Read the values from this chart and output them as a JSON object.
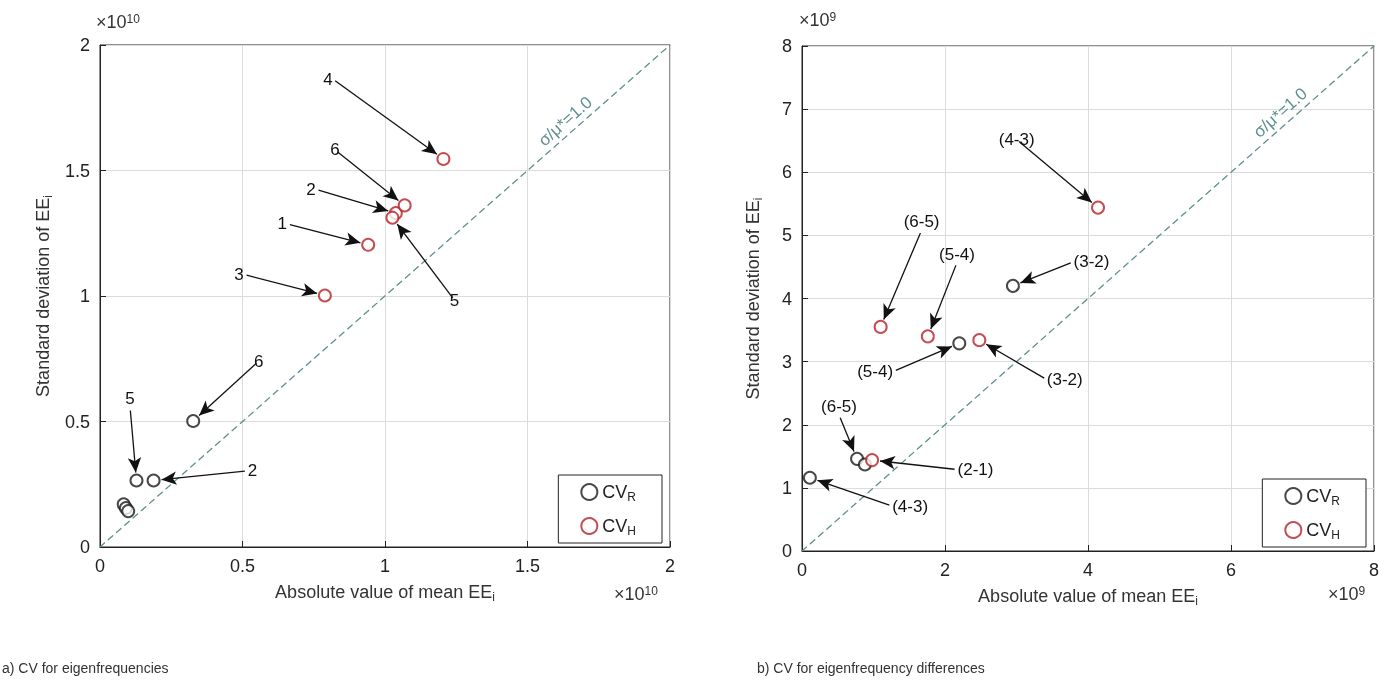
{
  "chart_data": [
    {
      "type": "scatter",
      "xlabel": "Absolute value of mean EE$_{i}$",
      "ylabel": "Standard deviation of EE$_{i}$",
      "xlim": [
        0,
        2
      ],
      "xticks": [
        0,
        0.5,
        1,
        1.5,
        2
      ],
      "ylim": [
        0,
        2
      ],
      "yticks": [
        0,
        0.5,
        1,
        1.5,
        2
      ],
      "grid": true,
      "legend": "bottom right",
      "marker": "circle",
      "series": [
        {
          "name": "CV$_{R}$",
          "color": "#1a1a1a",
          "x": [
            0.083,
            0.091,
            0.099,
            0.128,
            0.188,
            0.327
          ],
          "values": [
            0.17,
            0.155,
            0.143,
            0.265,
            0.265,
            0.502
          ]
        },
        {
          "name": "CV$_{H}$",
          "color": "#b52025",
          "x": [
            0.941,
            1.038,
            0.789,
            1.205,
            1.026,
            1.069
          ],
          "values": [
            1.204,
            1.33,
            1.002,
            1.546,
            1.312,
            1.361
          ]
        },
        {
          "name": "σ/μ*=1.0",
          "type": "line",
          "color": "#5f8f8f",
          "line_style": "dashed",
          "marker": "none",
          "x": [
            0,
            2
          ],
          "values": [
            0,
            2
          ]
        }
      ],
      "annotations": [
        "×10$^{10}$",
        "×10$^{10}$",
        "a) CV for eigenfrequencies",
        {
          "text": "4",
          "x": 1.205,
          "y": 1.546
        },
        {
          "text": "6",
          "x": 1.069,
          "y": 1.361
        },
        {
          "text": "2",
          "x": 1.038,
          "y": 1.33
        },
        {
          "text": "1",
          "x": 0.941,
          "y": 1.204
        },
        {
          "text": "3",
          "x": 0.789,
          "y": 1.002
        },
        {
          "text": "5",
          "x": 1.026,
          "y": 1.312
        },
        {
          "text": "6",
          "x": 0.327,
          "y": 0.502
        },
        {
          "text": "5",
          "x": 0.128,
          "y": 0.265
        },
        {
          "text": "2",
          "x": 0.188,
          "y": 0.265
        }
      ]
    },
    {
      "type": "scatter",
      "xlabel": "Absolute value of mean EE$_{i}$",
      "ylabel": "Standard deviation of EE$_{i}$",
      "xlim": [
        0,
        8
      ],
      "xticks": [
        0,
        2,
        4,
        6,
        8
      ],
      "ylim": [
        0,
        8
      ],
      "yticks": [
        0,
        1,
        2,
        3,
        4,
        5,
        6,
        7,
        8
      ],
      "grid": true,
      "legend": "bottom right",
      "marker": "circle",
      "series": [
        {
          "name": "CV$_{R}$",
          "color": "#1a1a1a",
          "x": [
            0.11,
            0.77,
            0.88,
            2.2,
            2.95
          ],
          "values": [
            1.16,
            1.46,
            1.37,
            3.29,
            4.2
          ]
        },
        {
          "name": "CV$_{H}$",
          "color": "#b52025",
          "x": [
            0.98,
            2.48,
            1.76,
            4.14,
            1.1
          ],
          "values": [
            1.44,
            3.34,
            3.4,
            5.44,
            3.55
          ]
        },
        {
          "name": "σ/μ*=1.0",
          "type": "line",
          "color": "#5f8f8f",
          "line_style": "dashed",
          "marker": "none",
          "x": [
            0,
            8
          ],
          "values": [
            0,
            8
          ]
        }
      ],
      "annotations": [
        "×10$^{9}$",
        "×10$^{9}$",
        "b) CV for eigenfrequency differences",
        {
          "text": "(4-3)",
          "x": 4.14,
          "y": 5.44
        },
        {
          "text": "(3-2)",
          "x": 2.95,
          "y": 4.2
        },
        {
          "text": "(6-5)",
          "x": 1.1,
          "y": 3.55
        },
        {
          "text": "(5-4)",
          "x": 1.76,
          "y": 3.4
        },
        {
          "text": "(5-4)",
          "x": 2.2,
          "y": 3.29
        },
        {
          "text": "(3-2)",
          "x": 2.48,
          "y": 3.34
        },
        {
          "text": "(6-5)",
          "x": 0.77,
          "y": 1.46
        },
        {
          "text": "(2-1)",
          "x": 0.98,
          "y": 1.44
        },
        {
          "text": "(4-3)",
          "x": 0.11,
          "y": 1.16
        }
      ]
    }
  ]
}
